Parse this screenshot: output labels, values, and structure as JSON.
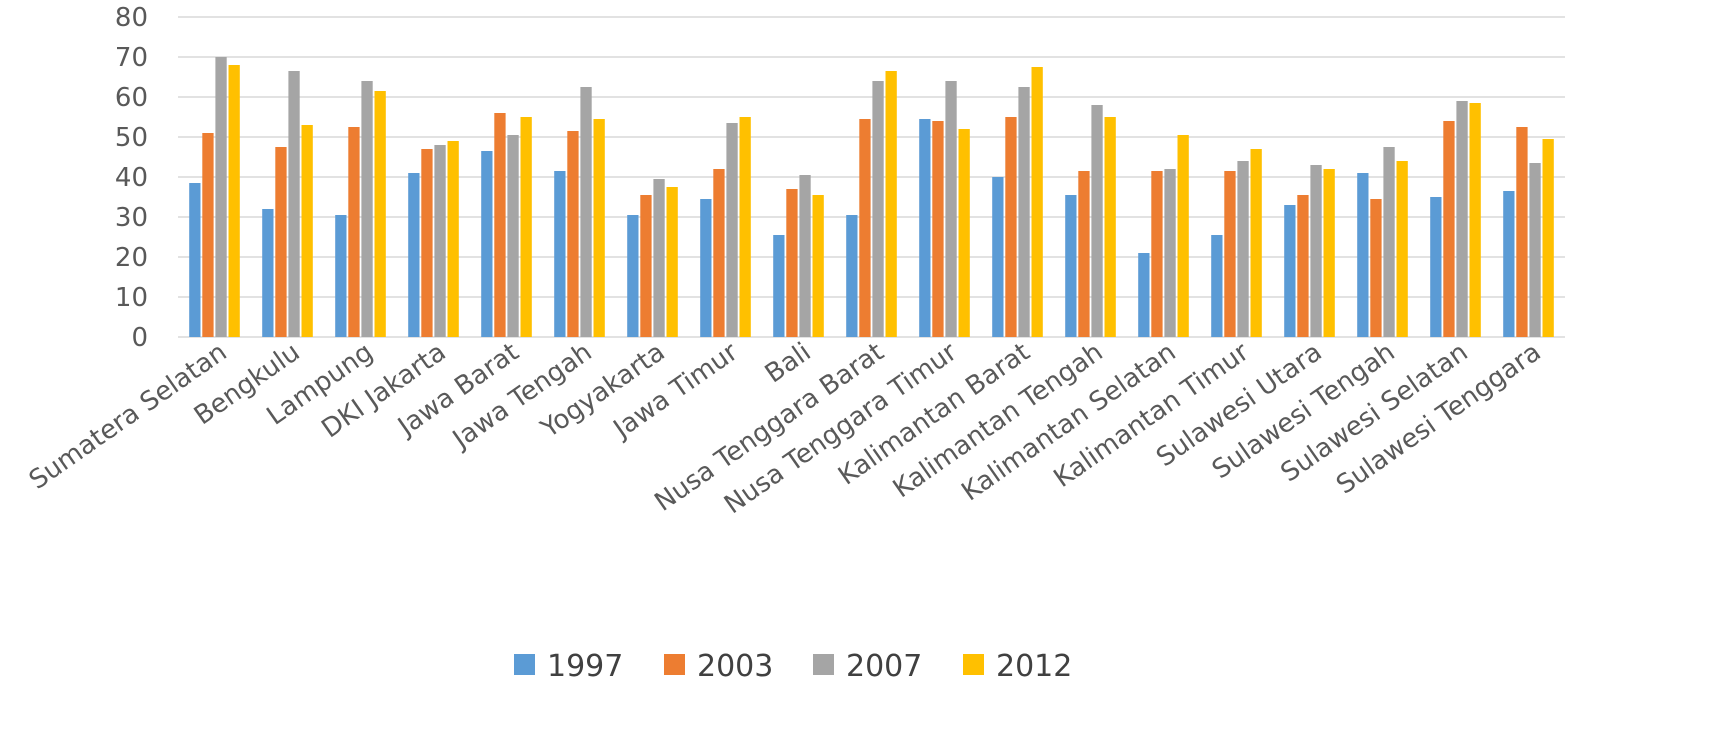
{
  "chart_data": {
    "type": "bar",
    "title": "",
    "xlabel": "",
    "ylabel": "",
    "ylim": [
      0,
      80
    ],
    "yticks": [
      0,
      10,
      20,
      30,
      40,
      50,
      60,
      70,
      80
    ],
    "grid": true,
    "legend_position": "bottom",
    "categories": [
      "Sumatera Selatan",
      "Bengkulu",
      "Lampung",
      "DKI Jakarta",
      "Jawa Barat",
      "Jawa Tengah",
      "Yogyakarta",
      "Jawa Timur",
      "Bali",
      "Nusa Tenggara Barat",
      "Nusa Tenggara Timur",
      "Kalimantan Barat",
      "Kalimantan Tengah",
      "Kalimantan Selatan",
      "Kalimantan Timur",
      "Sulawesi Utara",
      "Sulawesi Tengah",
      "Sulawesi Selatan",
      "Sulawesi Tenggara"
    ],
    "series": [
      {
        "name": "1997",
        "color": "#5b9bd5",
        "values": [
          38.5,
          32,
          30.5,
          41,
          46.5,
          41.5,
          30.5,
          34.5,
          25.5,
          30.5,
          54.5,
          40,
          35.5,
          21,
          25.5,
          33,
          41,
          35,
          36.5
        ]
      },
      {
        "name": "2003",
        "color": "#ed7d31",
        "values": [
          51,
          47.5,
          52.5,
          47,
          56,
          51.5,
          35.5,
          42,
          37,
          54.5,
          54,
          55,
          41.5,
          41.5,
          41.5,
          35.5,
          34.5,
          54,
          52.5
        ]
      },
      {
        "name": "2007",
        "color": "#a5a5a5",
        "values": [
          70,
          66.5,
          64,
          48,
          50.5,
          62.5,
          39.5,
          53.5,
          40.5,
          64,
          64,
          62.5,
          58,
          42,
          44,
          43,
          47.5,
          59,
          43.5
        ]
      },
      {
        "name": "2012",
        "color": "#ffc000",
        "values": [
          68,
          53,
          61.5,
          49,
          55,
          54.5,
          37.5,
          55,
          35.5,
          66.5,
          52,
          67.5,
          55,
          50.5,
          47,
          42,
          44,
          58.5,
          49.5
        ]
      }
    ]
  }
}
